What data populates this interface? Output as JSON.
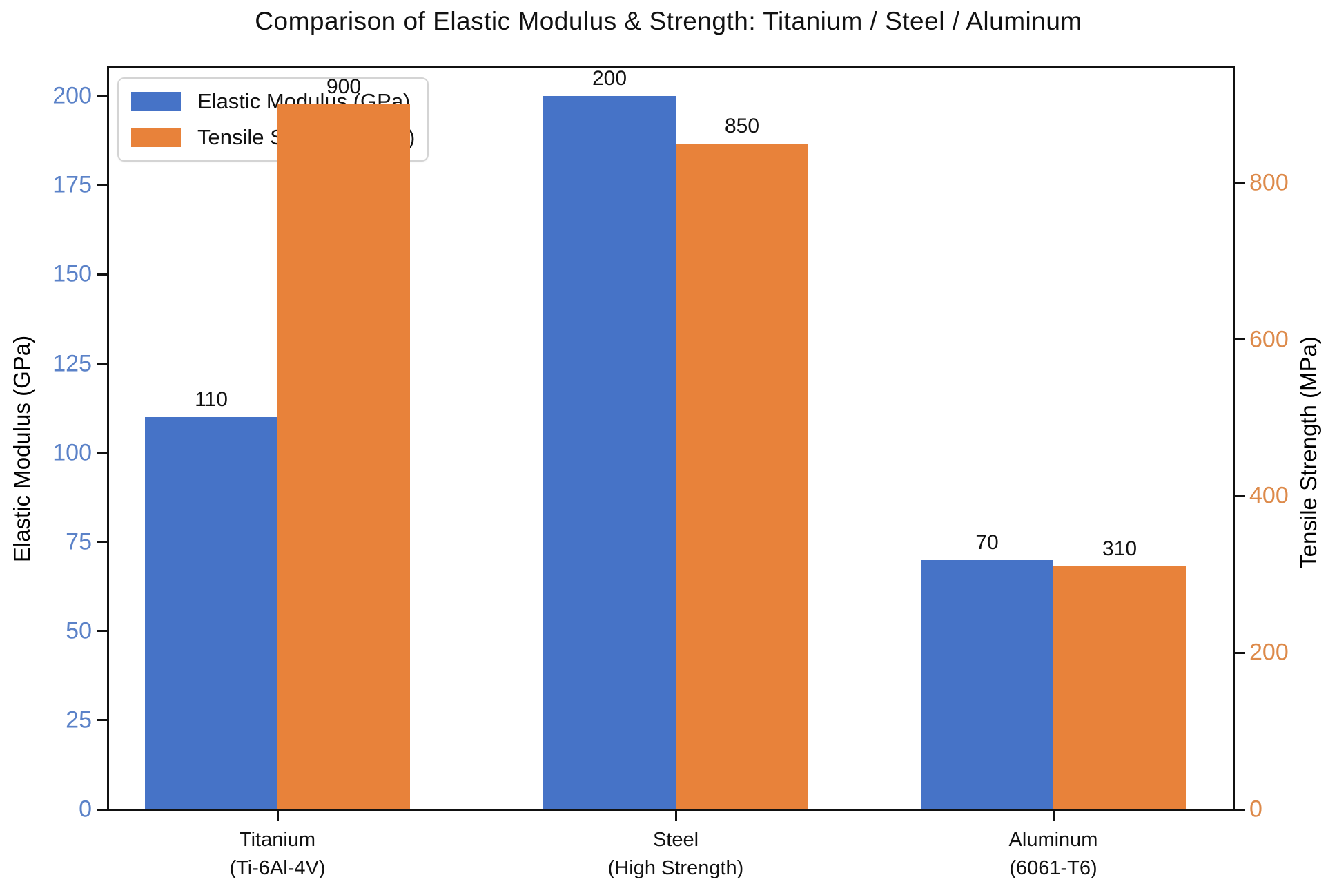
{
  "title": "Comparison of Elastic Modulus & Strength: Titanium / Steel / Aluminum",
  "chart_data": {
    "type": "bar",
    "title": "Comparison of Elastic Modulus & Strength: Titanium / Steel / Aluminum",
    "categories": [
      {
        "line1": "Titanium",
        "line2": "(Ti-6Al-4V)"
      },
      {
        "line1": "Steel",
        "line2": "(High Strength)"
      },
      {
        "line1": "Aluminum",
        "line2": "(6061-T6)"
      }
    ],
    "series": [
      {
        "name": "Elastic Modulus (GPa)",
        "axis": "left",
        "color": "#4673c7",
        "values": [
          110,
          200,
          70
        ]
      },
      {
        "name": "Tensile Strength (MPa)",
        "axis": "right",
        "color": "#e8823a",
        "values": [
          900,
          850,
          310
        ]
      }
    ],
    "left_axis": {
      "label": "Elastic Modulus (GPa)",
      "ticks": [
        0,
        25,
        50,
        75,
        100,
        125,
        150,
        175,
        200
      ],
      "range": [
        0,
        208
      ],
      "text_color": "#5b82c8"
    },
    "right_axis": {
      "label": "Tensile Strength (MPa)",
      "ticks": [
        0,
        200,
        400,
        600,
        800
      ],
      "range": [
        0,
        947
      ],
      "text_color": "#dd8a4a"
    },
    "legend": {
      "position": "upper-left",
      "entries": [
        "Elastic Modulus (GPa)",
        "Tensile Strength (MPa)"
      ]
    },
    "grid": false,
    "bar_value_labels": [
      [
        "110",
        "200",
        "70"
      ],
      [
        "900",
        "850",
        "310"
      ]
    ]
  }
}
